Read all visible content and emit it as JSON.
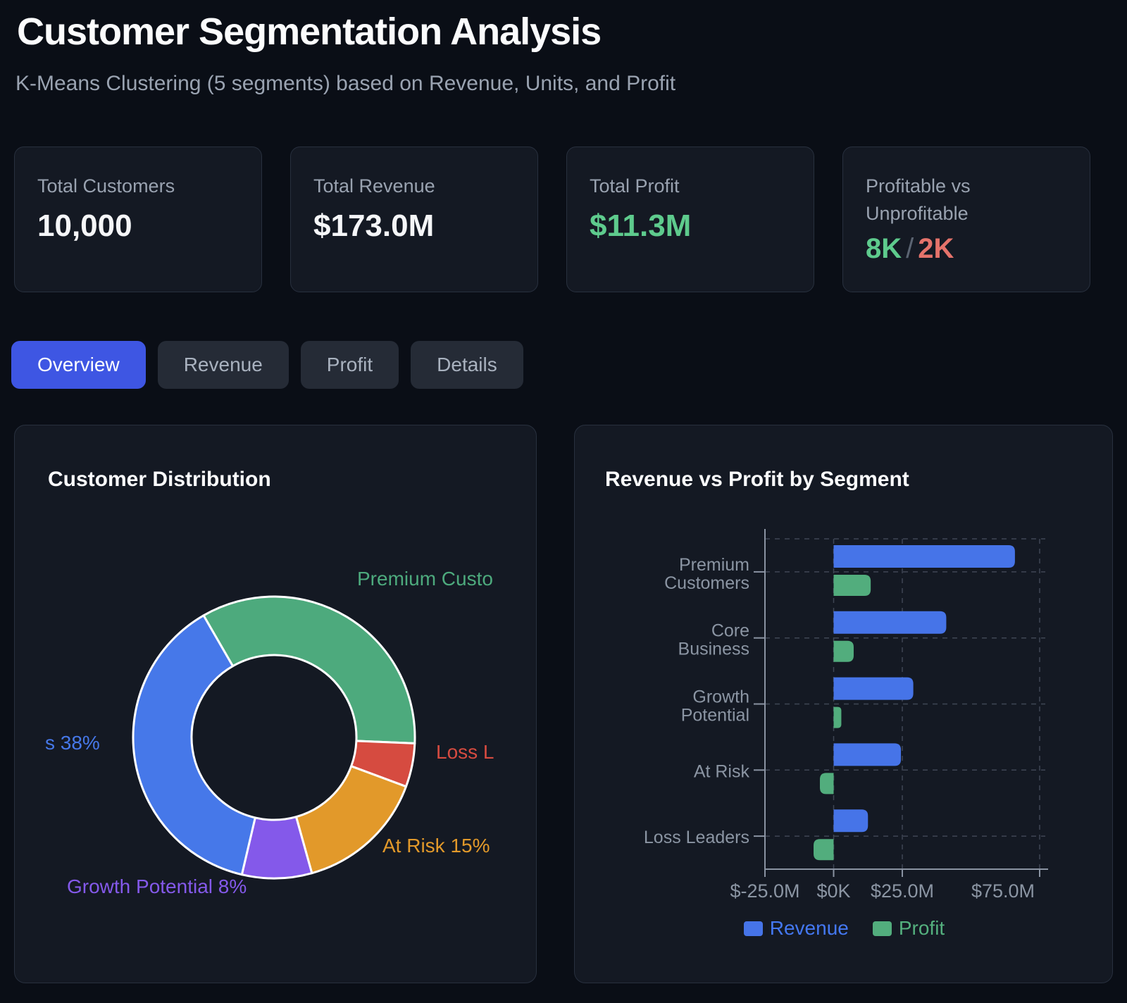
{
  "header": {
    "title": "Customer Segmentation Analysis",
    "subtitle": "K-Means Clustering (5 segments) based on Revenue, Units, and Profit"
  },
  "stats": [
    {
      "label": "Total Customers",
      "value": "10,000"
    },
    {
      "label": "Total Revenue",
      "value": "$173.0M"
    },
    {
      "label": "Total Profit",
      "value": "$11.3M"
    },
    {
      "label": "Profitable vs Unprofitable",
      "value_profitable": "8K",
      "value_separator": "/",
      "value_unprofitable": "2K"
    }
  ],
  "tabs": [
    {
      "label": "Overview",
      "active": true
    },
    {
      "label": "Revenue",
      "active": false
    },
    {
      "label": "Profit",
      "active": false
    },
    {
      "label": "Details",
      "active": false
    }
  ],
  "colors": {
    "accent_blue": "#3e56e3",
    "positive_green": "#5ecb8d",
    "negative_red": "#e5736b",
    "card_background": "#141923",
    "page_background": "#0a0e16"
  },
  "chart_data": [
    {
      "type": "pie",
      "variant": "donut",
      "title": "Customer Distribution",
      "start_angle_deg": -30,
      "legend": "none",
      "segments": [
        {
          "name": "Premium Customers",
          "value_pct": 34,
          "color": "#4daa7d",
          "visible_label": "Premium Custo"
        },
        {
          "name": "Loss Leaders",
          "value_pct": 5,
          "color": "#d64b40",
          "visible_label": "Loss L"
        },
        {
          "name": "At Risk",
          "value_pct": 15,
          "color": "#e2992a",
          "visible_label": "At Risk 15%"
        },
        {
          "name": "Growth Potential",
          "value_pct": 8,
          "color": "#8459ea",
          "visible_label": "Growth Potential 8%"
        },
        {
          "name": "Core Business",
          "value_pct": 38,
          "color": "#4678e9",
          "visible_label": "s 38%"
        }
      ]
    },
    {
      "type": "bar",
      "orientation": "horizontal",
      "title": "Revenue vs Profit by Segment",
      "categories": [
        "Premium Customers",
        "Core Business",
        "Growth Potential",
        "At Risk",
        "Loss Leaders"
      ],
      "category_lines": [
        [
          "Premium",
          "Customers"
        ],
        [
          "Core",
          "Business"
        ],
        [
          "Growth",
          "Potential"
        ],
        [
          "At Risk"
        ],
        [
          "Loss Leaders"
        ]
      ],
      "series": [
        {
          "name": "Revenue",
          "color": "#4674e8",
          "values_m": [
            66,
            41,
            29,
            24.5,
            12.5
          ]
        },
        {
          "name": "Profit",
          "color": "#52ad7d",
          "values_m": [
            13.5,
            7.3,
            2.8,
            -5.0,
            -7.3
          ]
        }
      ],
      "unit": "$M",
      "xlim": [
        -25,
        75
      ],
      "x_ticks": [
        -25,
        0,
        25,
        75
      ],
      "x_tick_labels": [
        "$-25.0M",
        "$0K",
        "$25.0M",
        "$75.0M"
      ],
      "grid": "dashed",
      "legend_position": "bottom",
      "legend_text_colors": [
        "#4478f2",
        "#54b07e"
      ]
    }
  ]
}
